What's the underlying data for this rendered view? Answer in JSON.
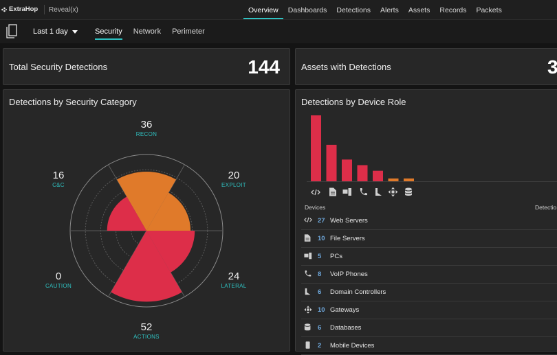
{
  "brand": {
    "name": "ExtraHop",
    "product": "Reveal(x)"
  },
  "nav": {
    "items": [
      "Overview",
      "Dashboards",
      "Detections",
      "Alerts",
      "Assets",
      "Records",
      "Packets"
    ],
    "active": "Overview"
  },
  "toolbar": {
    "time_range": "Last 1 day",
    "tabs": [
      "Security",
      "Network",
      "Perimeter"
    ],
    "active_tab": "Security"
  },
  "cards": {
    "total_detections": {
      "label": "Total Security Detections",
      "value": "144"
    },
    "assets_with_detections": {
      "label": "Assets with Detections",
      "value": "3"
    },
    "by_category": {
      "title": "Detections by Security Category"
    },
    "by_role": {
      "title": "Detections by Device Role"
    }
  },
  "chart_data": [
    {
      "type": "polar-area",
      "categories": [
        "RECON",
        "EXPLOIT",
        "LATERAL",
        "ACTIONS",
        "CAUTION",
        "C&C"
      ],
      "values": [
        36,
        20,
        24,
        52,
        0,
        16
      ],
      "labels": [
        "36",
        "20",
        "24",
        "52",
        "0",
        "16"
      ],
      "colors": {
        "orange": "#e07a2a",
        "red": "#dd2e49"
      }
    },
    {
      "type": "bar",
      "categories": [
        "Web Servers",
        "File Servers",
        "PCs",
        "VoIP Phones",
        "Domain Controllers",
        "Gateways",
        "Databases"
      ],
      "values": [
        94,
        52,
        31,
        23,
        15,
        4,
        4
      ],
      "bar_colors": [
        "#dd2e49",
        "#dd2e49",
        "#dd2e49",
        "#dd2e49",
        "#dd2e49",
        "#e07a2a",
        "#e07a2a"
      ]
    }
  ],
  "devices": {
    "col_devices": "Devices",
    "col_detections": "Detectio",
    "rows": [
      {
        "count": "27",
        "name": "Web Servers",
        "icon": "code-icon"
      },
      {
        "count": "10",
        "name": "File Servers",
        "icon": "file-icon"
      },
      {
        "count": "5",
        "name": "PCs",
        "icon": "pc-icon"
      },
      {
        "count": "8",
        "name": "VoIP Phones",
        "icon": "phone-icon"
      },
      {
        "count": "6",
        "name": "Domain Controllers",
        "icon": "domain-controller-icon"
      },
      {
        "count": "10",
        "name": "Gateways",
        "icon": "gateway-icon"
      },
      {
        "count": "6",
        "name": "Databases",
        "icon": "database-icon"
      },
      {
        "count": "2",
        "name": "Mobile Devices",
        "icon": "mobile-icon"
      }
    ]
  }
}
